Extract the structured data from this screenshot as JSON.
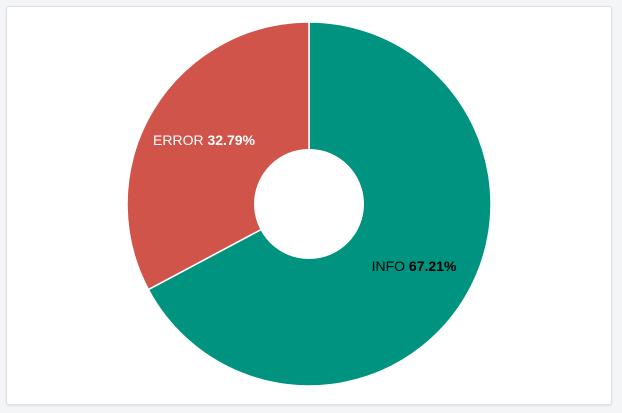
{
  "chart_data": {
    "type": "pie",
    "donut": true,
    "title": "",
    "slices": [
      {
        "label": "INFO",
        "value": 67.21,
        "percent_text": "67.21%",
        "color": "#009380",
        "label_color": "#000000"
      },
      {
        "label": "ERROR",
        "value": 32.79,
        "percent_text": "32.79%",
        "color": "#d1544a",
        "label_color": "#ffffff"
      }
    ],
    "legend": "none"
  }
}
